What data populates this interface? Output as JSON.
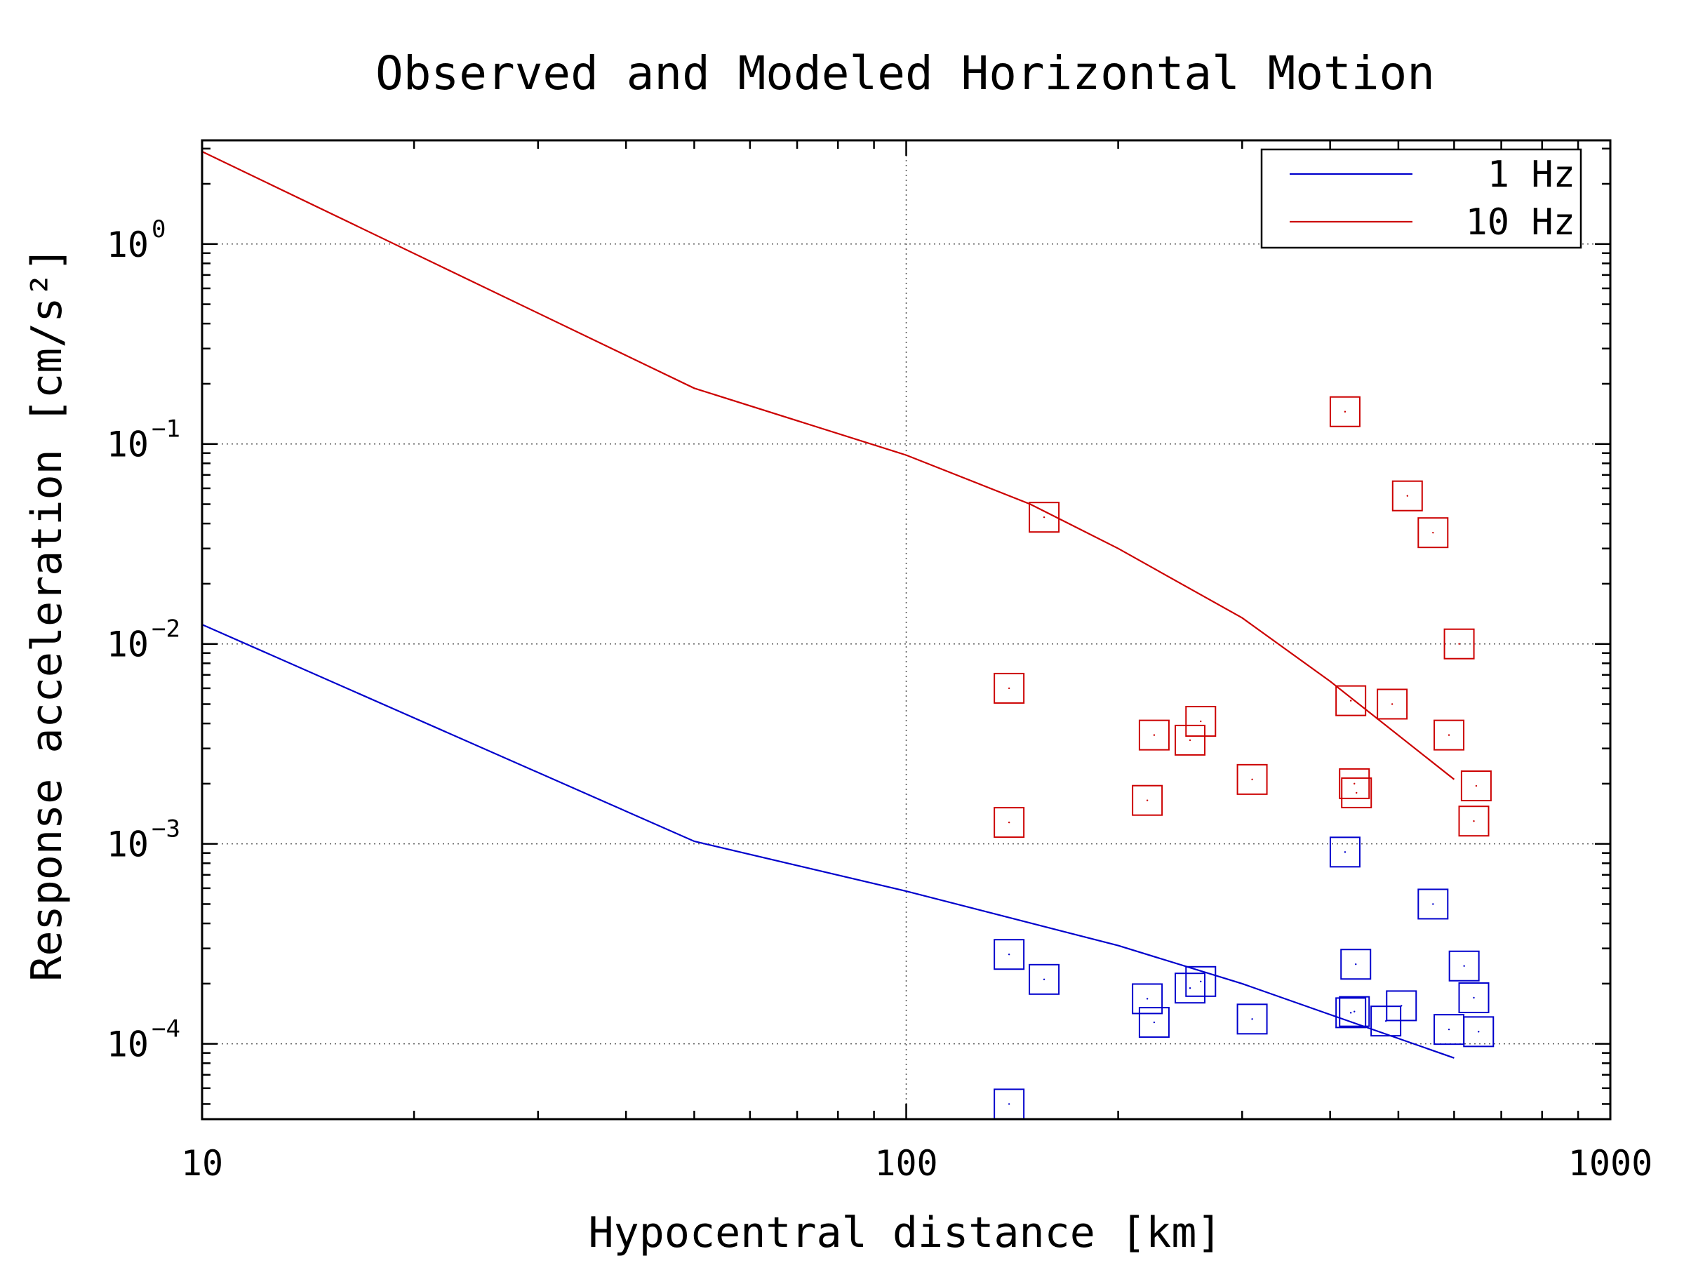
{
  "chart_data": {
    "type": "scatter",
    "title": "Observed and Modeled Horizontal Motion",
    "xlabel": "Hypocentral distance [km]",
    "ylabel": "Response acceleration [cm/s²]",
    "x_scale": "log",
    "y_scale": "log",
    "xlim": [
      10,
      1000
    ],
    "ylim": [
      4.2e-05,
      3.3
    ],
    "x_ticks": [
      {
        "value": 10,
        "label": "10"
      },
      {
        "value": 100,
        "label": "100"
      },
      {
        "value": 1000,
        "label": "1000"
      }
    ],
    "y_ticks": [
      {
        "value": 1,
        "base": "10",
        "exp": "0"
      },
      {
        "value": 0.1,
        "base": "10",
        "exp": "−1"
      },
      {
        "value": 0.01,
        "base": "10",
        "exp": "−2"
      },
      {
        "value": 0.001,
        "base": "10",
        "exp": "−3"
      },
      {
        "value": 0.0001,
        "base": "10",
        "exp": "−4"
      }
    ],
    "grid": true,
    "legend_position": "top-right",
    "series": [
      {
        "name": "1 Hz",
        "color": "#0000cc",
        "model": [
          [
            10,
            0.0125
          ],
          [
            50,
            0.00103
          ],
          [
            100,
            0.00058
          ],
          [
            200,
            0.00031
          ],
          [
            300,
            0.0002
          ],
          [
            400,
            0.00014
          ],
          [
            600,
            8.5e-05
          ]
        ],
        "observed": [
          [
            140,
            0.00028
          ],
          [
            157,
            0.00021
          ],
          [
            140,
            5e-05
          ],
          [
            220,
            0.000168
          ],
          [
            225,
            0.000128
          ],
          [
            253,
            0.00019
          ],
          [
            262,
            0.000205
          ],
          [
            310,
            0.000133
          ],
          [
            420,
            0.00091
          ],
          [
            428,
            0.000143
          ],
          [
            433,
            0.000145
          ],
          [
            435,
            0.00025
          ],
          [
            480,
            0.00013
          ],
          [
            505,
            0.000155
          ],
          [
            560,
            0.0005
          ],
          [
            590,
            0.000118
          ],
          [
            620,
            0.000245
          ],
          [
            640,
            0.00017
          ],
          [
            650,
            0.000115
          ]
        ]
      },
      {
        "name": "10 Hz",
        "color": "#cc0000",
        "model": [
          [
            10,
            2.9
          ],
          [
            50,
            0.19
          ],
          [
            100,
            0.088
          ],
          [
            150,
            0.05
          ],
          [
            200,
            0.03
          ],
          [
            300,
            0.0135
          ],
          [
            400,
            0.0065
          ],
          [
            600,
            0.0021
          ]
        ],
        "observed": [
          [
            420,
            0.145
          ],
          [
            157,
            0.043
          ],
          [
            515,
            0.055
          ],
          [
            560,
            0.036
          ],
          [
            610,
            0.01
          ],
          [
            140,
            0.006
          ],
          [
            428,
            0.0052
          ],
          [
            490,
            0.005
          ],
          [
            225,
            0.0035
          ],
          [
            253,
            0.0033
          ],
          [
            262,
            0.0041
          ],
          [
            590,
            0.0035
          ],
          [
            310,
            0.0021
          ],
          [
            220,
            0.00165
          ],
          [
            433,
            0.002
          ],
          [
            436,
            0.0018
          ],
          [
            645,
            0.00195
          ],
          [
            140,
            0.00128
          ],
          [
            640,
            0.0013
          ]
        ]
      }
    ]
  }
}
